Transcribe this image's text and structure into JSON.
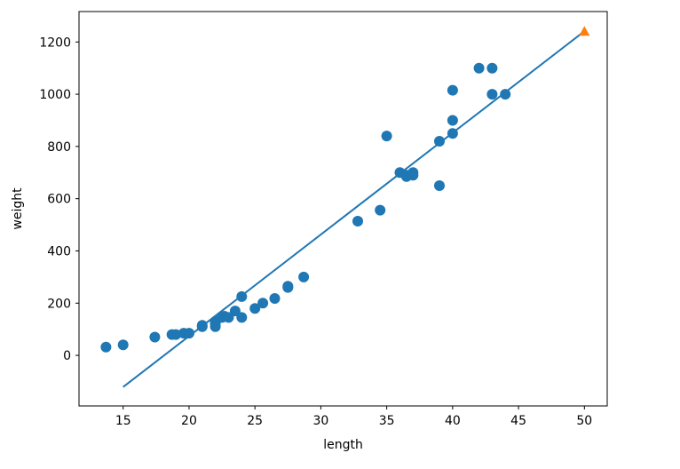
{
  "chart_data": {
    "type": "scatter",
    "xlabel": "length",
    "ylabel": "weight",
    "xlim": [
      11.65,
      51.73
    ],
    "ylim": [
      -193.6,
      1316.5
    ],
    "xticks": [
      15,
      20,
      25,
      30,
      35,
      40,
      45,
      50
    ],
    "yticks": [
      0,
      200,
      400,
      600,
      800,
      1000,
      1200
    ],
    "grid": false,
    "legend": "none",
    "series": [
      {
        "kind": "scatter",
        "marker": "circle",
        "color": "#1f77b4",
        "points": [
          [
            13.7,
            32
          ],
          [
            15.0,
            40
          ],
          [
            17.4,
            70
          ],
          [
            18.7,
            80
          ],
          [
            19.0,
            80
          ],
          [
            19.6,
            85
          ],
          [
            20.0,
            85
          ],
          [
            21.0,
            110
          ],
          [
            21.0,
            115
          ],
          [
            22.0,
            125
          ],
          [
            22.0,
            130
          ],
          [
            22.0,
            110
          ],
          [
            22.0,
            120
          ],
          [
            22.5,
            145
          ],
          [
            22.7,
            150
          ],
          [
            23.0,
            145
          ],
          [
            23.5,
            170
          ],
          [
            24.0,
            145
          ],
          [
            24.0,
            225
          ],
          [
            25.0,
            180
          ],
          [
            25.6,
            200
          ],
          [
            26.5,
            218
          ],
          [
            27.5,
            260
          ],
          [
            27.5,
            265
          ],
          [
            28.7,
            300
          ],
          [
            32.8,
            514
          ],
          [
            34.5,
            556
          ],
          [
            35.0,
            840
          ],
          [
            36.0,
            700
          ],
          [
            36.5,
            685
          ],
          [
            36.5,
            690
          ],
          [
            37.0,
            690
          ],
          [
            37.0,
            700
          ],
          [
            39.0,
            650
          ],
          [
            39.0,
            820
          ],
          [
            40.0,
            850
          ],
          [
            40.0,
            900
          ],
          [
            40.0,
            1015
          ],
          [
            42.0,
            1100
          ],
          [
            43.0,
            1100
          ],
          [
            43.0,
            1000
          ],
          [
            44.0,
            1000
          ]
        ]
      },
      {
        "kind": "line",
        "color": "#1f77b4",
        "points": [
          [
            15,
            -121
          ],
          [
            50,
            1241
          ]
        ]
      },
      {
        "kind": "scatter",
        "marker": "triangle",
        "color": "#ff7f0e",
        "points": [
          [
            50,
            1241
          ]
        ]
      }
    ]
  }
}
